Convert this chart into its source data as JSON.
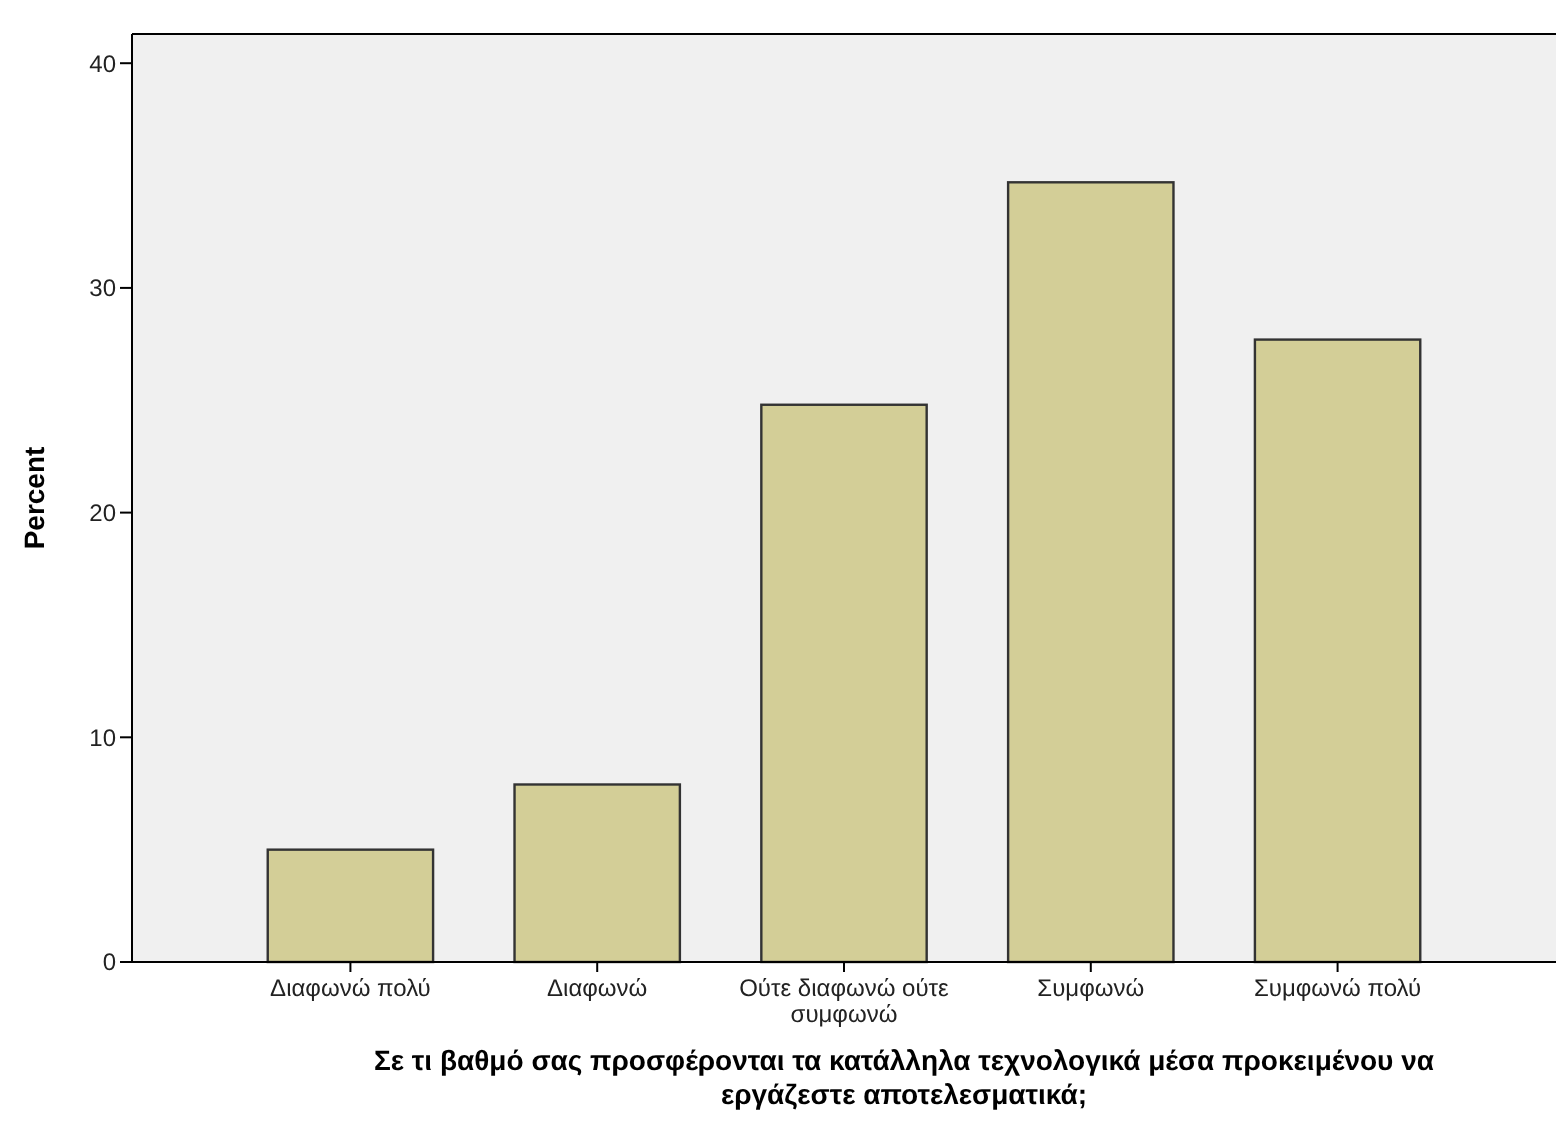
{
  "chart_data": {
    "type": "bar",
    "categories": [
      "Διαφωνώ πολύ",
      "Διαφωνώ",
      "Ούτε διαφωνώ ούτε συμφωνώ",
      "Συμφωνώ",
      "Συμφωνώ πολύ"
    ],
    "values": [
      5.0,
      7.9,
      24.8,
      34.7,
      27.7
    ],
    "color": "#d3ce97",
    "ylim": [
      0,
      41.3
    ],
    "yticks": [
      0,
      10,
      20,
      30,
      40
    ],
    "grid": false,
    "ylabel": "Percent",
    "xlabel": "Σε τι βαθμό σας προσφέρονται τα κατάλληλα τεχνολογικά μέσα προκειμένου να εργάζεστε αποτελεσματικά;"
  }
}
